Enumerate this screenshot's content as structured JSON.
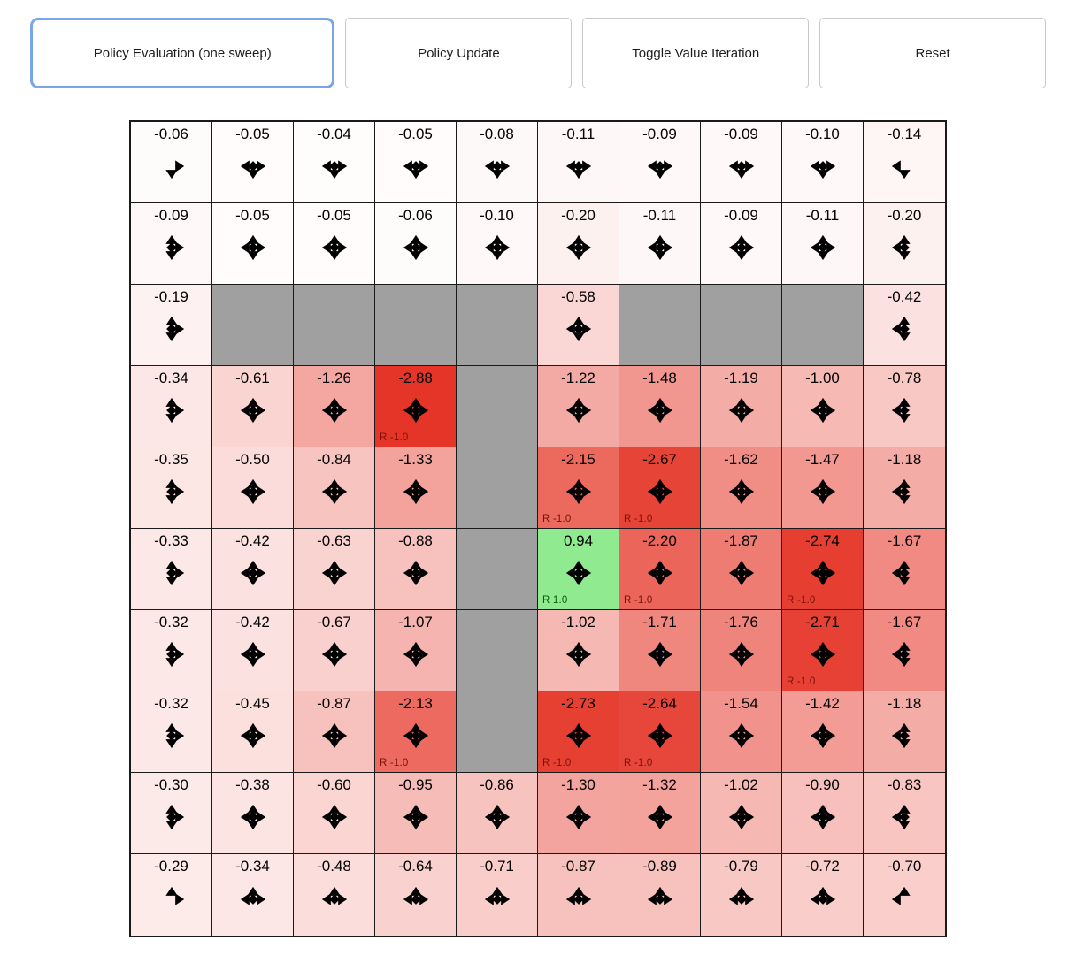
{
  "toolbar": {
    "buttons": [
      {
        "label": "Policy Evaluation (one sweep)",
        "active": true
      },
      {
        "label": "Policy Update",
        "active": false
      },
      {
        "label": "Toggle Value Iteration",
        "active": false
      },
      {
        "label": "Reset",
        "active": false
      }
    ]
  },
  "grid": {
    "rows": 10,
    "cols": 10,
    "colors": {
      "negative": "#e42d1f",
      "positive": "#89e989",
      "wall": "#a0a0a0",
      "border": "#1a1a1a",
      "arrow": "#000000",
      "active_button_border": "#7aa5e8",
      "reward_negative_text": "#7a1208",
      "reward_positive_text": "#0c5c0c",
      "neg_scale": 3.0,
      "pos_scale": 1.0
    },
    "cells": [
      [
        {
          "v": "-0.06",
          "d": "RD"
        },
        {
          "v": "-0.05",
          "d": "LRD"
        },
        {
          "v": "-0.04",
          "d": "LRD"
        },
        {
          "v": "-0.05",
          "d": "LRD"
        },
        {
          "v": "-0.08",
          "d": "LRD"
        },
        {
          "v": "-0.11",
          "d": "LRD"
        },
        {
          "v": "-0.09",
          "d": "LRD"
        },
        {
          "v": "-0.09",
          "d": "LRD"
        },
        {
          "v": "-0.10",
          "d": "LRD"
        },
        {
          "v": "-0.14",
          "d": "LD"
        }
      ],
      [
        {
          "v": "-0.09",
          "d": "URD"
        },
        {
          "v": "-0.05",
          "d": "UDLR"
        },
        {
          "v": "-0.05",
          "d": "UDLR"
        },
        {
          "v": "-0.06",
          "d": "UDLR"
        },
        {
          "v": "-0.10",
          "d": "UDLR"
        },
        {
          "v": "-0.20",
          "d": "UDLR"
        },
        {
          "v": "-0.11",
          "d": "UDLR"
        },
        {
          "v": "-0.09",
          "d": "UDLR"
        },
        {
          "v": "-0.11",
          "d": "UDLR"
        },
        {
          "v": "-0.20",
          "d": "UDL"
        }
      ],
      [
        {
          "v": "-0.19",
          "d": "URD"
        },
        {
          "w": true
        },
        {
          "w": true
        },
        {
          "w": true
        },
        {
          "w": true
        },
        {
          "v": "-0.58",
          "d": "UDLR"
        },
        {
          "w": true
        },
        {
          "w": true
        },
        {
          "w": true
        },
        {
          "v": "-0.42",
          "d": "UDL"
        }
      ],
      [
        {
          "v": "-0.34",
          "d": "URD"
        },
        {
          "v": "-0.61",
          "d": "UDLR"
        },
        {
          "v": "-1.26",
          "d": "UDLR"
        },
        {
          "v": "-2.88",
          "d": "UDLR",
          "r": "R -1.0"
        },
        {
          "w": true
        },
        {
          "v": "-1.22",
          "d": "UDLR"
        },
        {
          "v": "-1.48",
          "d": "UDLR"
        },
        {
          "v": "-1.19",
          "d": "UDLR"
        },
        {
          "v": "-1.00",
          "d": "UDLR"
        },
        {
          "v": "-0.78",
          "d": "UDL"
        }
      ],
      [
        {
          "v": "-0.35",
          "d": "URD"
        },
        {
          "v": "-0.50",
          "d": "UDLR"
        },
        {
          "v": "-0.84",
          "d": "UDLR"
        },
        {
          "v": "-1.33",
          "d": "UDLR"
        },
        {
          "w": true
        },
        {
          "v": "-2.15",
          "d": "UDLR",
          "r": "R -1.0"
        },
        {
          "v": "-2.67",
          "d": "UDLR",
          "r": "R -1.0"
        },
        {
          "v": "-1.62",
          "d": "UDLR"
        },
        {
          "v": "-1.47",
          "d": "UDLR"
        },
        {
          "v": "-1.18",
          "d": "UDL"
        }
      ],
      [
        {
          "v": "-0.33",
          "d": "URD"
        },
        {
          "v": "-0.42",
          "d": "UDLR"
        },
        {
          "v": "-0.63",
          "d": "UDLR"
        },
        {
          "v": "-0.88",
          "d": "UDLR"
        },
        {
          "w": true
        },
        {
          "v": "0.94",
          "d": "UDLR",
          "r": "R 1.0"
        },
        {
          "v": "-2.20",
          "d": "UDLR",
          "r": "R -1.0"
        },
        {
          "v": "-1.87",
          "d": "UDLR"
        },
        {
          "v": "-2.74",
          "d": "UDLR",
          "r": "R -1.0"
        },
        {
          "v": "-1.67",
          "d": "UDL"
        }
      ],
      [
        {
          "v": "-0.32",
          "d": "URD"
        },
        {
          "v": "-0.42",
          "d": "UDLR"
        },
        {
          "v": "-0.67",
          "d": "UDLR"
        },
        {
          "v": "-1.07",
          "d": "UDLR"
        },
        {
          "w": true
        },
        {
          "v": "-1.02",
          "d": "UDLR"
        },
        {
          "v": "-1.71",
          "d": "UDLR"
        },
        {
          "v": "-1.76",
          "d": "UDLR"
        },
        {
          "v": "-2.71",
          "d": "UDLR",
          "r": "R -1.0"
        },
        {
          "v": "-1.67",
          "d": "UDL"
        }
      ],
      [
        {
          "v": "-0.32",
          "d": "URD"
        },
        {
          "v": "-0.45",
          "d": "UDLR"
        },
        {
          "v": "-0.87",
          "d": "UDLR"
        },
        {
          "v": "-2.13",
          "d": "UDLR",
          "r": "R -1.0"
        },
        {
          "w": true
        },
        {
          "v": "-2.73",
          "d": "UDLR",
          "r": "R -1.0"
        },
        {
          "v": "-2.64",
          "d": "UDLR",
          "r": "R -1.0"
        },
        {
          "v": "-1.54",
          "d": "UDLR"
        },
        {
          "v": "-1.42",
          "d": "UDLR"
        },
        {
          "v": "-1.18",
          "d": "UDL"
        }
      ],
      [
        {
          "v": "-0.30",
          "d": "URD"
        },
        {
          "v": "-0.38",
          "d": "UDLR"
        },
        {
          "v": "-0.60",
          "d": "UDLR"
        },
        {
          "v": "-0.95",
          "d": "UDLR"
        },
        {
          "v": "-0.86",
          "d": "UDLR"
        },
        {
          "v": "-1.30",
          "d": "UDLR"
        },
        {
          "v": "-1.32",
          "d": "UDLR"
        },
        {
          "v": "-1.02",
          "d": "UDLR"
        },
        {
          "v": "-0.90",
          "d": "UDLR"
        },
        {
          "v": "-0.83",
          "d": "UDL"
        }
      ],
      [
        {
          "v": "-0.29",
          "d": "UR"
        },
        {
          "v": "-0.34",
          "d": "ULR"
        },
        {
          "v": "-0.48",
          "d": "ULR"
        },
        {
          "v": "-0.64",
          "d": "ULR"
        },
        {
          "v": "-0.71",
          "d": "ULR"
        },
        {
          "v": "-0.87",
          "d": "ULR"
        },
        {
          "v": "-0.89",
          "d": "ULR"
        },
        {
          "v": "-0.79",
          "d": "ULR"
        },
        {
          "v": "-0.72",
          "d": "ULR"
        },
        {
          "v": "-0.70",
          "d": "UL"
        }
      ]
    ]
  }
}
